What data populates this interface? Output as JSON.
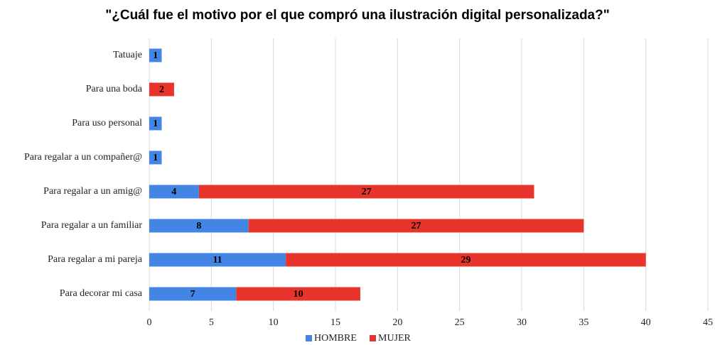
{
  "chart_data": {
    "type": "stacked_barh",
    "title": "\"¿Cuál fue el motivo por el que compró una ilustración digital personalizada?\"",
    "categories": [
      "Tatuaje",
      "Para una boda",
      "Para uso personal",
      "Para regalar a un compañer@",
      "Para regalar a un amig@",
      "Para regalar a un familiar",
      "Para regalar a mi pareja",
      "Para decorar mi casa"
    ],
    "series": [
      {
        "name": "HOMBRE",
        "color": "#4285e4",
        "values": [
          1,
          null,
          1,
          1,
          4,
          8,
          11,
          7
        ]
      },
      {
        "name": "MUJER",
        "color": "#e8352b",
        "values": [
          null,
          2,
          null,
          null,
          27,
          27,
          29,
          10
        ]
      }
    ],
    "xlim": [
      0,
      45
    ],
    "xticks": [
      0,
      5,
      10,
      15,
      20,
      25,
      30,
      35,
      40,
      45
    ],
    "grid": true,
    "legend": "bottom"
  }
}
